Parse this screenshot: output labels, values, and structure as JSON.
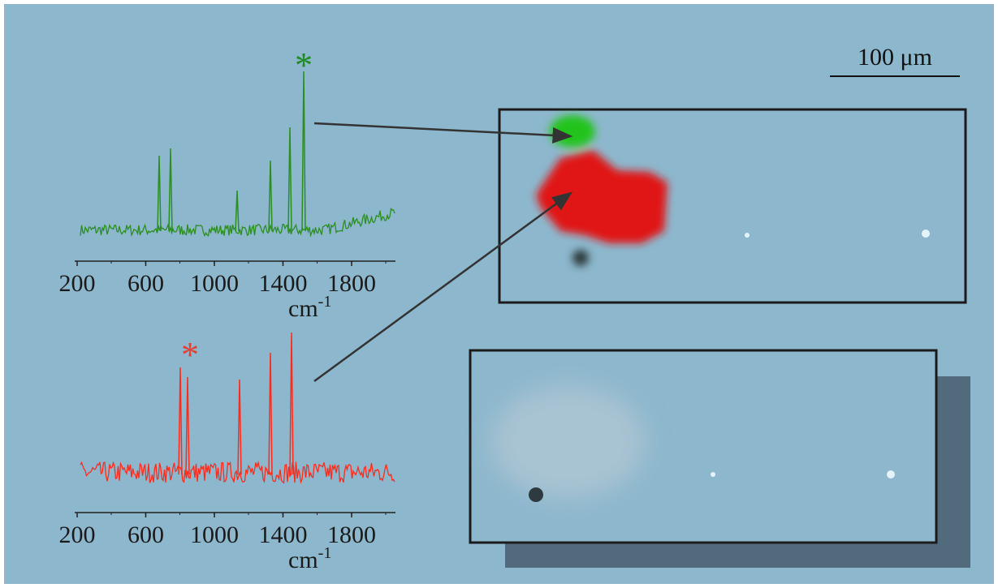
{
  "scale_bar": "100 μm",
  "spectra": [
    {
      "asterisk": "*",
      "ticks": [
        200,
        600,
        1000,
        1400,
        1800
      ],
      "unit": "cm",
      "unit_exponent": "-1"
    },
    {
      "asterisk": "*",
      "ticks": [
        200,
        600,
        1000,
        1400,
        1800
      ],
      "unit": "cm",
      "unit_exponent": "-1"
    }
  ]
}
